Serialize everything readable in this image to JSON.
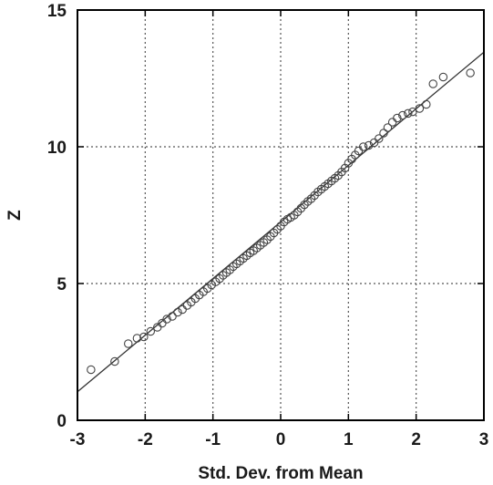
{
  "chart_data": {
    "type": "scatter",
    "title": "",
    "xlabel": "Std. Dev. from Mean",
    "ylabel": "Z",
    "xlim": [
      -3,
      3
    ],
    "ylim": [
      0,
      15
    ],
    "grid": true,
    "x_ticks": [
      "-3",
      "-2",
      "-1",
      "0",
      "1",
      "2",
      "3"
    ],
    "y_ticks": [
      "0",
      "5",
      "10",
      "15"
    ],
    "fit_line": {
      "slope": 2.07,
      "intercept": 7.25
    },
    "series": [
      {
        "marker": "open-circle",
        "points": [
          [
            -2.8,
            1.85
          ],
          [
            -2.45,
            2.15
          ],
          [
            -2.25,
            2.8
          ],
          [
            -2.12,
            3.0
          ],
          [
            -2.02,
            3.05
          ],
          [
            -1.92,
            3.25
          ],
          [
            -1.82,
            3.4
          ],
          [
            -1.75,
            3.55
          ],
          [
            -1.68,
            3.7
          ],
          [
            -1.6,
            3.8
          ],
          [
            -1.52,
            3.95
          ],
          [
            -1.45,
            4.05
          ],
          [
            -1.38,
            4.2
          ],
          [
            -1.32,
            4.32
          ],
          [
            -1.26,
            4.45
          ],
          [
            -1.2,
            4.58
          ],
          [
            -1.14,
            4.7
          ],
          [
            -1.08,
            4.82
          ],
          [
            -1.02,
            4.95
          ],
          [
            -0.96,
            5.06
          ],
          [
            -0.9,
            5.18
          ],
          [
            -0.85,
            5.3
          ],
          [
            -0.8,
            5.4
          ],
          [
            -0.75,
            5.5
          ],
          [
            -0.7,
            5.62
          ],
          [
            -0.65,
            5.72
          ],
          [
            -0.6,
            5.82
          ],
          [
            -0.55,
            5.92
          ],
          [
            -0.5,
            6.02
          ],
          [
            -0.45,
            6.12
          ],
          [
            -0.4,
            6.2
          ],
          [
            -0.35,
            6.3
          ],
          [
            -0.3,
            6.4
          ],
          [
            -0.25,
            6.5
          ],
          [
            -0.2,
            6.6
          ],
          [
            -0.15,
            6.72
          ],
          [
            -0.1,
            6.85
          ],
          [
            -0.05,
            6.98
          ],
          [
            0.0,
            7.1
          ],
          [
            0.05,
            7.25
          ],
          [
            0.1,
            7.35
          ],
          [
            0.15,
            7.42
          ],
          [
            0.2,
            7.5
          ],
          [
            0.25,
            7.62
          ],
          [
            0.3,
            7.75
          ],
          [
            0.35,
            7.88
          ],
          [
            0.4,
            8.0
          ],
          [
            0.45,
            8.1
          ],
          [
            0.5,
            8.22
          ],
          [
            0.55,
            8.35
          ],
          [
            0.6,
            8.45
          ],
          [
            0.65,
            8.55
          ],
          [
            0.7,
            8.65
          ],
          [
            0.75,
            8.75
          ],
          [
            0.8,
            8.85
          ],
          [
            0.85,
            8.95
          ],
          [
            0.9,
            9.08
          ],
          [
            0.95,
            9.22
          ],
          [
            1.0,
            9.4
          ],
          [
            1.05,
            9.55
          ],
          [
            1.1,
            9.7
          ],
          [
            1.15,
            9.85
          ],
          [
            1.22,
            10.0
          ],
          [
            1.3,
            10.05
          ],
          [
            1.38,
            10.15
          ],
          [
            1.45,
            10.3
          ],
          [
            1.52,
            10.5
          ],
          [
            1.58,
            10.7
          ],
          [
            1.65,
            10.9
          ],
          [
            1.72,
            11.05
          ],
          [
            1.8,
            11.15
          ],
          [
            1.88,
            11.22
          ],
          [
            1.95,
            11.28
          ],
          [
            2.05,
            11.4
          ],
          [
            2.15,
            11.55
          ],
          [
            2.25,
            12.3
          ],
          [
            2.4,
            12.55
          ],
          [
            2.8,
            12.7
          ]
        ]
      }
    ]
  }
}
